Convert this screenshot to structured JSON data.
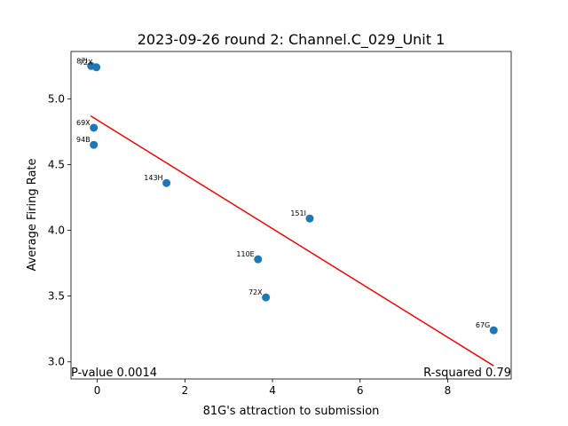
{
  "chart_data": {
    "type": "scatter",
    "title": "2023-09-26 round 2: Channel.C_029_Unit 1",
    "xlabel": "81G's attraction to submission",
    "ylabel": "Average Firing Rate",
    "xlim": [
      -0.6,
      9.45
    ],
    "ylim": [
      2.87,
      5.36
    ],
    "xticks": [
      0,
      2,
      4,
      6,
      8
    ],
    "yticks": [
      3.0,
      3.5,
      4.0,
      4.5,
      5.0
    ],
    "xtick_labels": [
      "0",
      "2",
      "4",
      "6",
      "8"
    ],
    "ytick_labels": [
      "3.0",
      "3.5",
      "4.0",
      "4.5",
      "5.0"
    ],
    "grid": false,
    "points": [
      {
        "label": "67G",
        "x": 9.05,
        "y": 3.24
      },
      {
        "label": "72X",
        "x": 3.85,
        "y": 3.49
      },
      {
        "label": "110E",
        "x": 3.67,
        "y": 3.78
      },
      {
        "label": "151I",
        "x": 4.85,
        "y": 4.09
      },
      {
        "label": "143H",
        "x": 1.58,
        "y": 4.36
      },
      {
        "label": "94B",
        "x": -0.08,
        "y": 4.65
      },
      {
        "label": "69X",
        "x": -0.08,
        "y": 4.78
      },
      {
        "label": "72X",
        "x": -0.02,
        "y": 5.24
      },
      {
        "label": "87I",
        "x": -0.14,
        "y": 5.25
      }
    ],
    "fit_line": {
      "x": [
        -0.15,
        9.05
      ],
      "y": [
        4.87,
        2.97
      ]
    },
    "point_color": "#1f77b4",
    "line_color": "#ff0000",
    "annotations": {
      "p_value": "P-value 0.0014",
      "r_squared": "R-squared 0.79"
    }
  }
}
